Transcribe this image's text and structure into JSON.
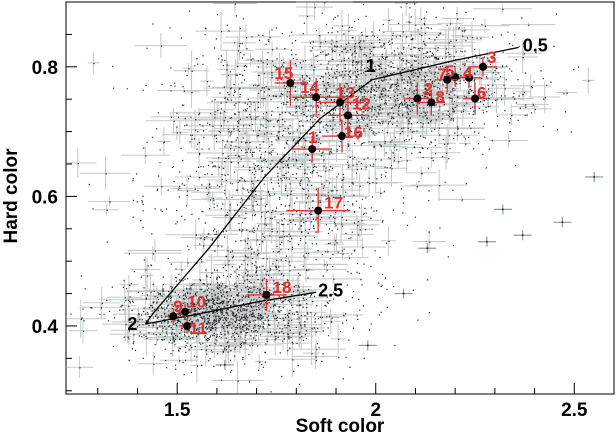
{
  "chart_data": {
    "type": "scatter",
    "title": "",
    "xlabel": "Soft color",
    "ylabel": "Hard color",
    "xlim": [
      1.22,
      2.6
    ],
    "ylim": [
      0.295,
      0.9
    ],
    "xticks": [
      {
        "value": 1.5,
        "label": "1.5"
      },
      {
        "value": 2.0,
        "label": "2"
      },
      {
        "value": 2.5,
        "label": "2.5"
      }
    ],
    "yticks": [
      {
        "value": 0.4,
        "label": "0.4"
      },
      {
        "value": 0.6,
        "label": "0.6"
      },
      {
        "value": 0.8,
        "label": "0.8"
      }
    ],
    "grid": false,
    "legend": "none",
    "colors": {
      "background_points": "#222222",
      "error_bars": "#8f9a9c",
      "highlight_points": "#000000",
      "highlight_errors": "#e03030",
      "highlight_labels": "#e03030",
      "track_line": "#000000"
    },
    "tracks": [
      {
        "points": [
          {
            "x": 2.36,
            "y": 0.83
          },
          {
            "x": 2.2,
            "y": 0.81
          },
          {
            "x": 1.99,
            "y": 0.78
          },
          {
            "x": 1.86,
            "y": 0.72
          },
          {
            "x": 1.72,
            "y": 0.63
          },
          {
            "x": 1.58,
            "y": 0.52
          },
          {
            "x": 1.44,
            "y": 0.42
          },
          {
            "x": 1.42,
            "y": 0.403
          }
        ],
        "labels": [
          {
            "text": "0.5",
            "x": 2.36,
            "y": 0.83
          },
          {
            "text": "1",
            "x": 1.99,
            "y": 0.78
          },
          {
            "text": "2",
            "x": 1.42,
            "y": 0.403
          }
        ]
      },
      {
        "points": [
          {
            "x": 1.42,
            "y": 0.403
          },
          {
            "x": 1.55,
            "y": 0.418
          },
          {
            "x": 1.7,
            "y": 0.437
          },
          {
            "x": 1.85,
            "y": 0.452
          }
        ],
        "labels": [
          {
            "text": "2.5",
            "x": 1.85,
            "y": 0.452
          }
        ]
      }
    ],
    "highlighted_points": [
      {
        "label": "1",
        "x": 1.84,
        "y": 0.673,
        "xerr": 0.05,
        "yerr": 0.02
      },
      {
        "label": "2",
        "x": 2.105,
        "y": 0.751,
        "xerr": 0.03,
        "yerr": 0.025
      },
      {
        "label": "3",
        "x": 2.27,
        "y": 0.8,
        "xerr": 0.035,
        "yerr": 0.015
      },
      {
        "label": "4",
        "x": 2.235,
        "y": 0.783,
        "xerr": 0.03,
        "yerr": 0.015
      },
      {
        "label": "5",
        "x": 2.2,
        "y": 0.784,
        "xerr": 0.03,
        "yerr": 0.015
      },
      {
        "label": "6",
        "x": 2.25,
        "y": 0.751,
        "xerr": 0.03,
        "yerr": 0.025
      },
      {
        "label": "7",
        "x": 2.18,
        "y": 0.78,
        "xerr": 0.025,
        "yerr": 0.02
      },
      {
        "label": "8",
        "x": 2.14,
        "y": 0.745,
        "xerr": 0.035,
        "yerr": 0.02
      },
      {
        "label": "9",
        "x": 1.49,
        "y": 0.415,
        "xerr": 0.015,
        "yerr": 0.012
      },
      {
        "label": "10",
        "x": 1.52,
        "y": 0.422,
        "xerr": 0.018,
        "yerr": 0.012
      },
      {
        "label": "11",
        "x": 1.525,
        "y": 0.4,
        "xerr": 0.02,
        "yerr": 0.012
      },
      {
        "label": "12",
        "x": 1.93,
        "y": 0.725,
        "xerr": 0.05,
        "yerr": 0.03
      },
      {
        "label": "13",
        "x": 1.91,
        "y": 0.745,
        "xerr": 0.06,
        "yerr": 0.03
      },
      {
        "label": "14",
        "x": 1.85,
        "y": 0.753,
        "xerr": 0.06,
        "yerr": 0.03
      },
      {
        "label": "15",
        "x": 1.785,
        "y": 0.775,
        "xerr": 0.04,
        "yerr": 0.035
      },
      {
        "label": "16",
        "x": 1.915,
        "y": 0.693,
        "xerr": 0.05,
        "yerr": 0.025
      },
      {
        "label": "17",
        "x": 1.855,
        "y": 0.578,
        "xerr": 0.08,
        "yerr": 0.035
      },
      {
        "label": "18",
        "x": 1.725,
        "y": 0.448,
        "xerr": 0.05,
        "yerr": 0.025
      }
    ],
    "background_regions": [
      {
        "cx": 1.75,
        "cy": 0.62,
        "sx": 0.16,
        "sy": 0.13,
        "n": 1500
      },
      {
        "cx": 2.05,
        "cy": 0.77,
        "sx": 0.16,
        "sy": 0.05,
        "n": 1400
      },
      {
        "cx": 1.6,
        "cy": 0.42,
        "sx": 0.12,
        "sy": 0.03,
        "n": 1200
      }
    ],
    "outliers": [
      {
        "x": 2.55,
        "y": 0.63
      },
      {
        "x": 2.47,
        "y": 0.56
      },
      {
        "x": 2.37,
        "y": 0.54
      },
      {
        "x": 2.32,
        "y": 0.58
      },
      {
        "x": 2.28,
        "y": 0.53
      },
      {
        "x": 2.13,
        "y": 0.52
      },
      {
        "x": 2.07,
        "y": 0.45
      },
      {
        "x": 1.98,
        "y": 0.37
      },
      {
        "x": 1.62,
        "y": 0.34
      }
    ]
  }
}
